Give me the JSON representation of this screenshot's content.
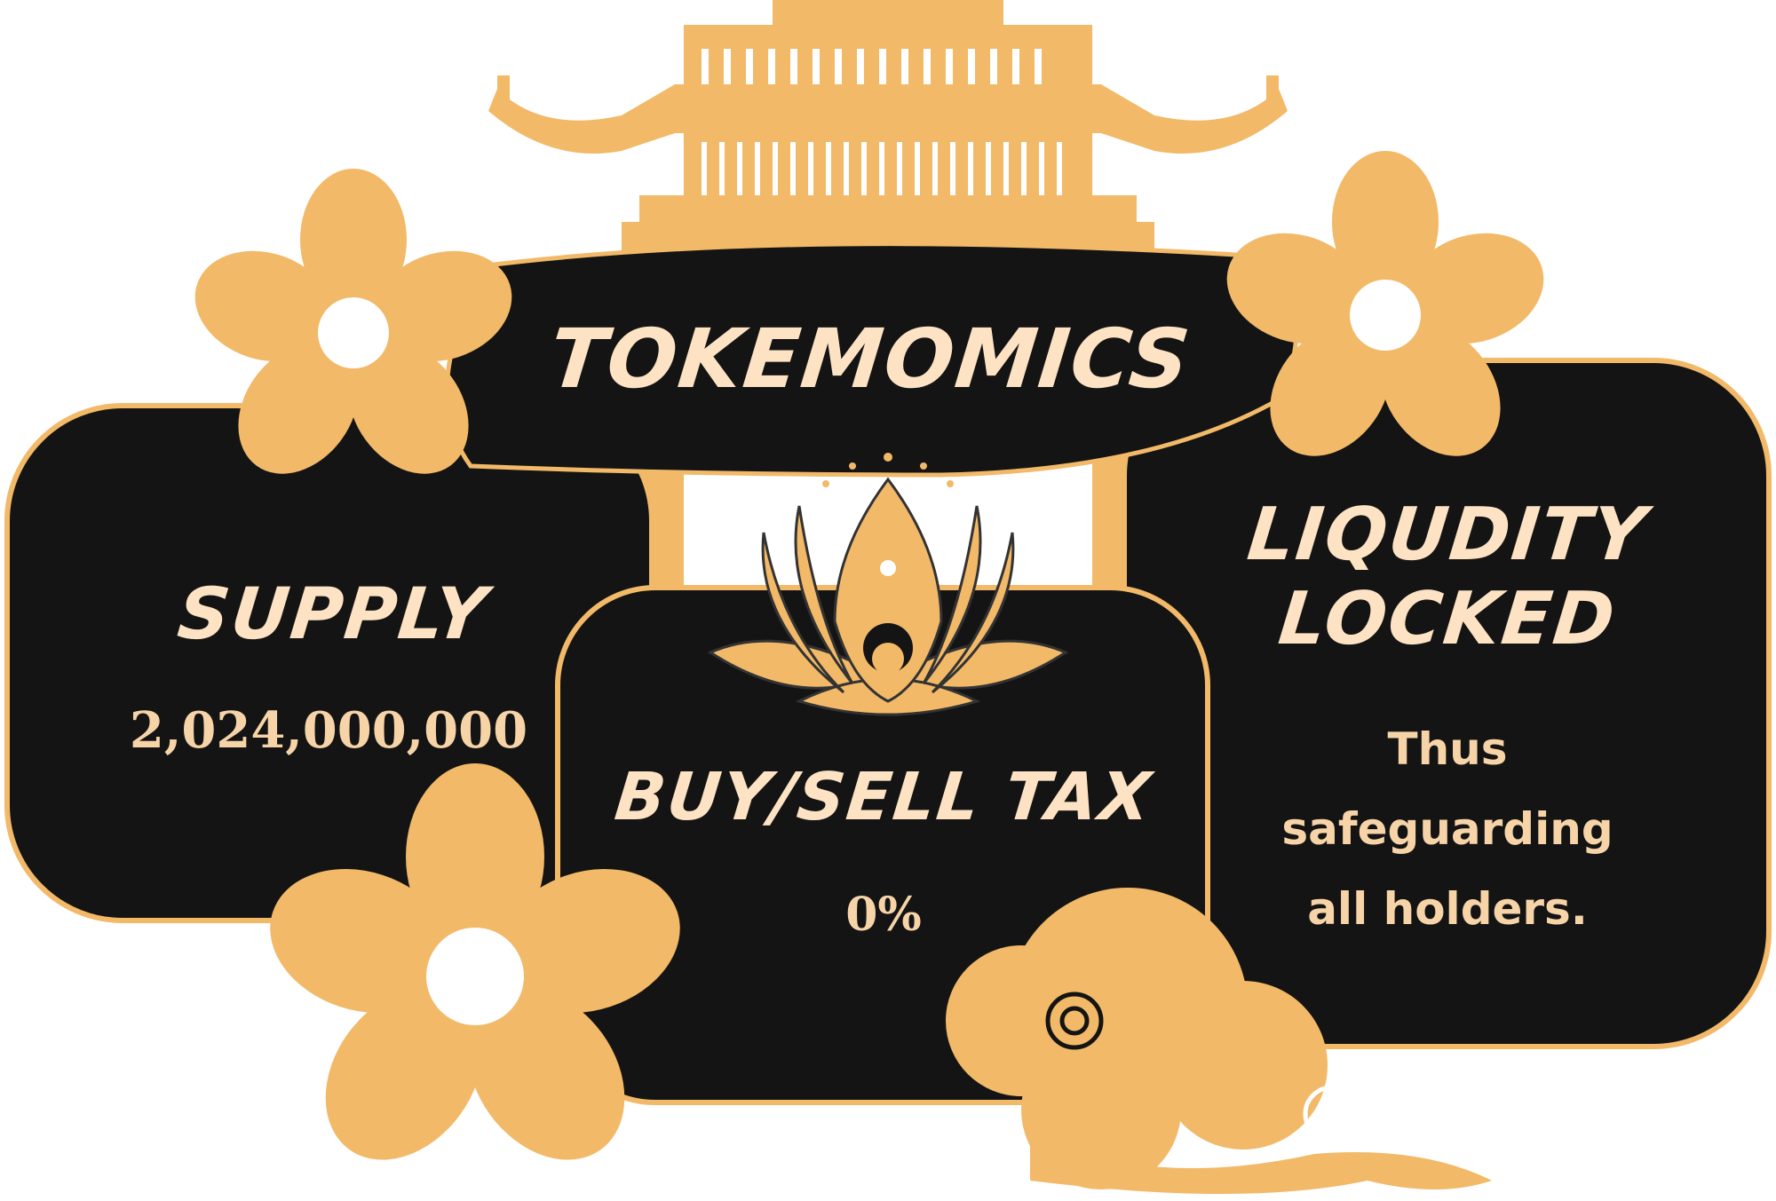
{
  "title": "TOKEMOMICS",
  "panels": {
    "supply": {
      "heading": "SUPPLY",
      "value": "2,024,000,000"
    },
    "tax": {
      "heading": "BUY/SELL TAX",
      "value": "0%"
    },
    "liquidity": {
      "heading_line1": "LIQUDITY",
      "heading_line2": "LOCKED",
      "line1": "Thus",
      "line2": "safeguarding",
      "line3": "all holders."
    }
  },
  "colors": {
    "accent": "#f2b968",
    "panel": "#141414",
    "text": "#fde3c4"
  }
}
